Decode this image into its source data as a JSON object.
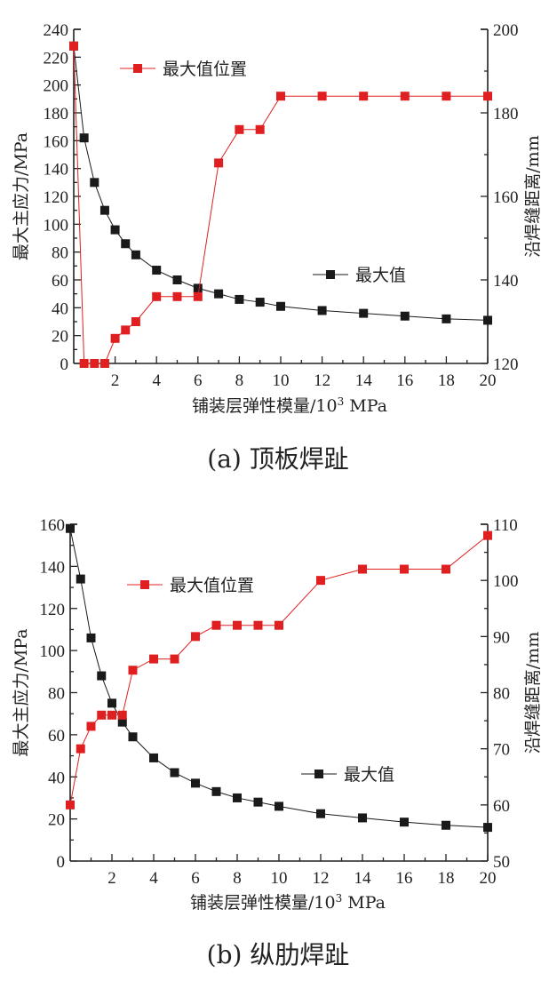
{
  "chart_data": [
    {
      "type": "line",
      "panel": "a",
      "caption": "(a) 顶板焊趾",
      "xlabel": "铺装层弹性模量/10³ MPa",
      "xlabel_main": "铺装层弹性模量/10",
      "xlabel_sup": "3",
      "xlabel_tail": " MPa",
      "ylabel_left": "最大主应力/MPa",
      "ylabel_right": "沿焊缝距离/mm",
      "xlim": [
        0,
        20
      ],
      "ylim_left": [
        0,
        240
      ],
      "ylim_right": [
        120,
        200
      ],
      "x_ticks": [
        "2",
        "4",
        "6",
        "8",
        "10",
        "12",
        "14",
        "16",
        "18",
        "20"
      ],
      "y_left_ticks": [
        "0",
        "20",
        "40",
        "60",
        "80",
        "100",
        "120",
        "140",
        "160",
        "180",
        "200",
        "220",
        "240"
      ],
      "y_right_ticks": [
        "120",
        "140",
        "160",
        "180",
        "200"
      ],
      "x": [
        0,
        0.5,
        1,
        1.5,
        2,
        2.5,
        3,
        4,
        5,
        6,
        7,
        8,
        9,
        10,
        12,
        14,
        16,
        18,
        20
      ],
      "series": [
        {
          "name": "最大值",
          "axis": "left",
          "color": "#1a1a1a",
          "values": [
            228,
            162,
            130,
            110,
            96,
            86,
            78,
            67,
            60,
            54,
            50,
            46,
            44,
            41,
            38,
            36,
            34,
            32,
            31
          ]
        },
        {
          "name": "最大值位置",
          "axis": "right",
          "color": "#e02020",
          "values": [
            196,
            120,
            120,
            120,
            126,
            128,
            130,
            136,
            136,
            136,
            168,
            176,
            176,
            184,
            184,
            184,
            184,
            184,
            184
          ]
        }
      ],
      "legend": [
        "最大值位置",
        "最大值"
      ]
    },
    {
      "type": "line",
      "panel": "b",
      "caption": "(b) 纵肋焊趾",
      "xlabel": "铺装层弹性模量/10³ MPa",
      "xlabel_main": "铺装层弹性模量/10",
      "xlabel_sup": "3",
      "xlabel_tail": " MPa",
      "ylabel_left": "最大主应力/MPa",
      "ylabel_right": "沿焊缝距离/mm",
      "xlim": [
        0,
        20
      ],
      "ylim_left": [
        0,
        160
      ],
      "ylim_right": [
        50,
        110
      ],
      "x_ticks": [
        "2",
        "4",
        "6",
        "8",
        "10",
        "12",
        "14",
        "16",
        "18",
        "20"
      ],
      "y_left_ticks": [
        "0",
        "20",
        "40",
        "60",
        "80",
        "100",
        "120",
        "140",
        "160"
      ],
      "y_right_ticks": [
        "50",
        "60",
        "70",
        "80",
        "90",
        "100",
        "110"
      ],
      "x": [
        0,
        0.5,
        1,
        1.5,
        2,
        2.5,
        3,
        4,
        5,
        6,
        7,
        8,
        9,
        10,
        12,
        14,
        16,
        18,
        20
      ],
      "series": [
        {
          "name": "最大值",
          "axis": "left",
          "color": "#1a1a1a",
          "values": [
            158,
            134,
            106,
            88,
            75,
            66,
            59,
            49,
            42,
            37,
            33,
            30,
            28,
            26,
            22.5,
            20.5,
            18.5,
            17,
            16
          ]
        },
        {
          "name": "最大值位置",
          "axis": "right",
          "color": "#e02020",
          "values": [
            60,
            70,
            74,
            76,
            76,
            76,
            84,
            86,
            86,
            90,
            92,
            92,
            92,
            92,
            100,
            102,
            102,
            102,
            108
          ]
        }
      ],
      "legend": [
        "最大值位置",
        "最大值"
      ]
    }
  ]
}
